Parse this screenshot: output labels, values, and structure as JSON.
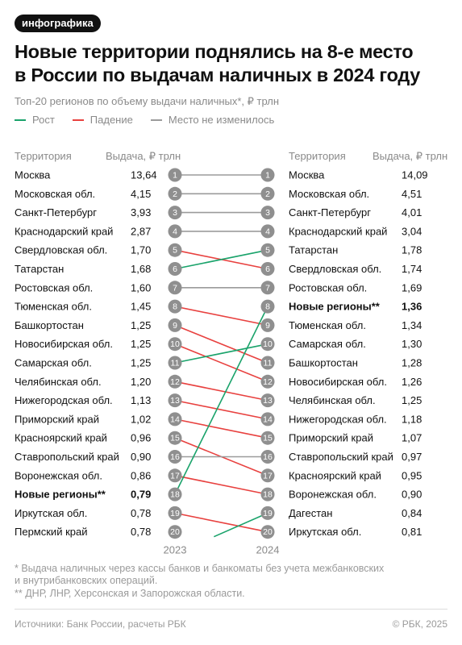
{
  "tag": "инфографика",
  "title_line1": "Новые территории поднялись на 8-е место",
  "title_line2": "в России по выдачам наличных в 2024 году",
  "subtitle": "Топ-20 регионов по объему выдачи наличных*, ₽ трлн",
  "legend": [
    {
      "label": "Рост",
      "color": "#1aa36b"
    },
    {
      "label": "Падение",
      "color": "#e8413f"
    },
    {
      "label": "Место не изменилось",
      "color": "#9b9b9b"
    }
  ],
  "headers": {
    "territory_left": "Территория",
    "value_left": "Выдача, ₽ трлн",
    "territory_right": "Территория",
    "value_right": "Выдача, ₽ трлн"
  },
  "chart_data": {
    "type": "slope",
    "x": [
      "2023",
      "2024"
    ],
    "ranks": [
      "1",
      "2",
      "3",
      "4",
      "5",
      "6",
      "7",
      "8",
      "9",
      "10",
      "11",
      "12",
      "13",
      "14",
      "15",
      "16",
      "17",
      "18",
      "19",
      "20"
    ],
    "y2023": [
      {
        "name": "Москва",
        "value": "13,64"
      },
      {
        "name": "Московская обл.",
        "value": "4,15"
      },
      {
        "name": "Санкт-Петербург",
        "value": "3,93"
      },
      {
        "name": "Краснодарский край",
        "value": "2,87"
      },
      {
        "name": "Свердловская обл.",
        "value": "1,70"
      },
      {
        "name": "Татарстан",
        "value": "1,68"
      },
      {
        "name": "Ростовская обл.",
        "value": "1,60"
      },
      {
        "name": "Тюменская обл.",
        "value": "1,45"
      },
      {
        "name": "Башкортостан",
        "value": "1,25"
      },
      {
        "name": "Новосибирская обл.",
        "value": "1,25"
      },
      {
        "name": "Самарская обл.",
        "value": "1,25"
      },
      {
        "name": "Челябинская обл.",
        "value": "1,20"
      },
      {
        "name": "Нижегородская обл.",
        "value": "1,13"
      },
      {
        "name": "Приморский край",
        "value": "1,02"
      },
      {
        "name": "Красноярский край",
        "value": "0,96"
      },
      {
        "name": "Ставропольский край",
        "value": "0,90"
      },
      {
        "name": "Воронежская обл.",
        "value": "0,86"
      },
      {
        "name": "Новые регионы**",
        "value": "0,79",
        "bold": true
      },
      {
        "name": "Иркутская обл.",
        "value": "0,78"
      },
      {
        "name": "Пермский край",
        "value": "0,78"
      }
    ],
    "y2024": [
      {
        "name": "Москва",
        "value": "14,09"
      },
      {
        "name": "Московская обл.",
        "value": "4,51"
      },
      {
        "name": "Санкт-Петербург",
        "value": "4,01"
      },
      {
        "name": "Краснодарский край",
        "value": "3,04"
      },
      {
        "name": "Татарстан",
        "value": "1,78"
      },
      {
        "name": "Свердловская обл.",
        "value": "1,74"
      },
      {
        "name": "Ростовская обл.",
        "value": "1,69"
      },
      {
        "name": "Новые регионы**",
        "value": "1,36",
        "bold": true
      },
      {
        "name": "Тюменская обл.",
        "value": "1,34"
      },
      {
        "name": "Самарская обл.",
        "value": "1,30"
      },
      {
        "name": "Башкортостан",
        "value": "1,28"
      },
      {
        "name": "Новосибирская обл.",
        "value": "1,26"
      },
      {
        "name": "Челябинская обл.",
        "value": "1,25"
      },
      {
        "name": "Нижегородская обл.",
        "value": "1,18"
      },
      {
        "name": "Приморский край",
        "value": "1,07"
      },
      {
        "name": "Ставропольский край",
        "value": "0,97"
      },
      {
        "name": "Красноярский край",
        "value": "0,95"
      },
      {
        "name": "Воронежская обл.",
        "value": "0,90"
      },
      {
        "name": "Дагестан",
        "value": "0,84"
      },
      {
        "name": "Иркутская обл.",
        "value": "0,81"
      }
    ],
    "extra_lines": [
      {
        "from_rank_2023": 20,
        "to_rank_2024": 19,
        "trend": "up"
      }
    ],
    "colors": {
      "up": "#1aa36b",
      "down": "#e8413f",
      "same": "#9b9b9b",
      "circle": "#8f8f8f"
    }
  },
  "notes": [
    "* Выдача наличных через кассы банков и банкоматы без учета межбанковских",
    "и внутрибанковских операций.",
    "** ДНР, ЛНР, Херсонская и Запорожская области."
  ],
  "footer": {
    "source": "Источники: Банк России, расчеты РБК",
    "copyright": "© РБК, 2025"
  }
}
